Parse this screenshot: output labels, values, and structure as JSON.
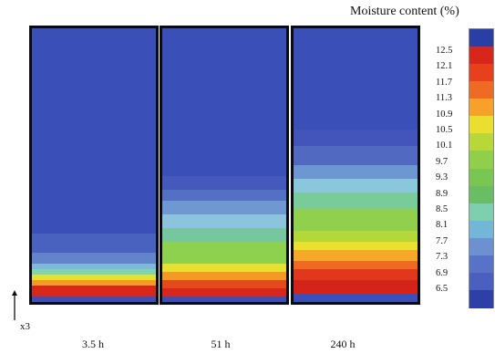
{
  "title": "Moisture content (%)",
  "axis_label": "x3",
  "time_labels": [
    "3.5 h",
    "51 h",
    "240 h"
  ],
  "scale_ticks": [
    "12.5",
    "12.1",
    "11.7",
    "11.3",
    "10.9",
    "10.5",
    "10.1",
    "9.7",
    "9.3",
    "8.9",
    "8.5",
    "8.1",
    "7.7",
    "7.3",
    "6.9",
    "6.5"
  ],
  "colorbar_colors": [
    "#2a3fa6",
    "#d8261a",
    "#e8401c",
    "#ef6a22",
    "#f7a12a",
    "#eadf2f",
    "#b8d83a",
    "#8fcf4a",
    "#79c652",
    "#69bd62",
    "#7ecfb0",
    "#74b6d8",
    "#6d90d0",
    "#5872c8",
    "#4a5fc0",
    "#2f3fa8"
  ],
  "panels": [
    {
      "name": "3.5 h",
      "bands": [
        {
          "color": "#3a4fb8",
          "frac": 0.75
        },
        {
          "color": "#4a62bf",
          "frac": 0.07
        },
        {
          "color": "#6384cb",
          "frac": 0.04
        },
        {
          "color": "#7fb8da",
          "frac": 0.02
        },
        {
          "color": "#7fd5b0",
          "frac": 0.02
        },
        {
          "color": "#e6e12e",
          "frac": 0.02
        },
        {
          "color": "#f59a23",
          "frac": 0.02
        },
        {
          "color": "#d8261a",
          "frac": 0.04
        },
        {
          "color": "#3a4fb8",
          "frac": 0.02
        }
      ]
    },
    {
      "name": "51 h",
      "bands": [
        {
          "color": "#3a4fb8",
          "frac": 0.54
        },
        {
          "color": "#4558bc",
          "frac": 0.05
        },
        {
          "color": "#5470c5",
          "frac": 0.04
        },
        {
          "color": "#6f98d2",
          "frac": 0.05
        },
        {
          "color": "#8bc4dc",
          "frac": 0.05
        },
        {
          "color": "#76c7a0",
          "frac": 0.05
        },
        {
          "color": "#8ed14e",
          "frac": 0.08
        },
        {
          "color": "#e8df30",
          "frac": 0.03
        },
        {
          "color": "#f49a24",
          "frac": 0.03
        },
        {
          "color": "#e54a1d",
          "frac": 0.03
        },
        {
          "color": "#d8261a",
          "frac": 0.03
        },
        {
          "color": "#3a4fb8",
          "frac": 0.02
        }
      ]
    },
    {
      "name": "240 h",
      "bands": [
        {
          "color": "#3a4fb8",
          "frac": 0.37
        },
        {
          "color": "#4354ba",
          "frac": 0.06
        },
        {
          "color": "#5269c2",
          "frac": 0.07
        },
        {
          "color": "#6d97d2",
          "frac": 0.05
        },
        {
          "color": "#8ac7dc",
          "frac": 0.05
        },
        {
          "color": "#7acb9a",
          "frac": 0.06
        },
        {
          "color": "#90d04c",
          "frac": 0.08
        },
        {
          "color": "#b4d83a",
          "frac": 0.04
        },
        {
          "color": "#ece02e",
          "frac": 0.03
        },
        {
          "color": "#f6a82a",
          "frac": 0.04
        },
        {
          "color": "#ee6a22",
          "frac": 0.03
        },
        {
          "color": "#e1371c",
          "frac": 0.04
        },
        {
          "color": "#d42419",
          "frac": 0.05
        },
        {
          "color": "#3a4fb8",
          "frac": 0.03
        }
      ]
    }
  ]
}
